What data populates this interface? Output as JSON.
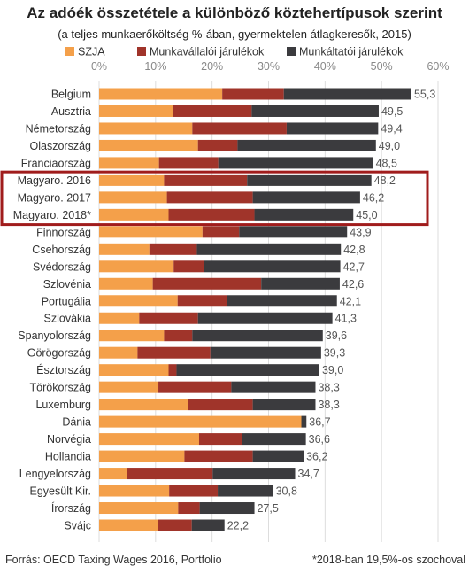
{
  "chart_data": {
    "type": "bar",
    "orientation": "horizontal",
    "stacked": true,
    "title": "Az adóék összetétele a különböző köztehertípusok szerint",
    "subtitle": "(a teljes munkaerőköltség %-ában, gyermektelen átlagkeresők, 2015)",
    "xlim": [
      0,
      60
    ],
    "xticks": [
      "0%",
      "10%",
      "20%",
      "30%",
      "40%",
      "50%",
      "60%"
    ],
    "xtick_values": [
      0,
      10,
      20,
      30,
      40,
      50,
      60
    ],
    "grid": true,
    "legend_position": "top",
    "categories": [
      "Belgium",
      "Ausztria",
      "Németország",
      "Olaszország",
      "Franciaország",
      "Magyaro. 2016",
      "Magyaro. 2017",
      "Magyaro. 2018*",
      "Finnország",
      "Csehország",
      "Svédország",
      "Szlovénia",
      "Portugália",
      "Szlovákia",
      "Spanyolország",
      "Görögország",
      "Észtország",
      "Törökország",
      "Luxemburg",
      "Dánia",
      "Norvégia",
      "Hollandia",
      "Lengyelország",
      "Egyesült Kir.",
      "Írország",
      "Svájc"
    ],
    "series": [
      {
        "name": "SZJA",
        "color": "#f4a04a",
        "values": [
          21.8,
          13.0,
          16.5,
          17.5,
          10.6,
          11.5,
          12.0,
          12.3,
          18.3,
          8.9,
          13.2,
          9.5,
          13.9,
          7.1,
          11.5,
          6.8,
          12.3,
          10.5,
          15.8,
          35.8,
          17.7,
          15.1,
          4.9,
          12.4,
          14.0,
          10.4
        ]
      },
      {
        "name": "Munkavállalói járulékok",
        "color": "#a0342a",
        "values": [
          10.9,
          14.0,
          16.7,
          7.0,
          10.5,
          14.7,
          15.2,
          15.2,
          6.5,
          8.4,
          5.4,
          19.2,
          8.7,
          10.4,
          5.0,
          12.9,
          1.4,
          12.9,
          11.4,
          0.0,
          7.6,
          12.1,
          15.2,
          8.6,
          3.8,
          6.0
        ]
      },
      {
        "name": "Munkáltatói járulékok",
        "color": "#3b3b3e",
        "values": [
          22.6,
          22.5,
          16.2,
          24.5,
          27.4,
          22.0,
          19.0,
          17.5,
          19.1,
          25.5,
          24.1,
          13.9,
          19.5,
          23.8,
          23.1,
          19.6,
          25.3,
          14.9,
          11.1,
          0.9,
          11.3,
          9.0,
          14.6,
          9.8,
          9.7,
          5.8
        ]
      }
    ],
    "totals": [
      55.3,
      49.5,
      49.4,
      49.0,
      48.5,
      48.2,
      46.2,
      45.0,
      43.9,
      42.8,
      42.7,
      42.6,
      42.1,
      41.3,
      39.6,
      39.3,
      39.0,
      38.3,
      38.3,
      36.7,
      36.6,
      36.2,
      34.7,
      30.8,
      27.5,
      22.2
    ],
    "total_labels": [
      "55,3",
      "49,5",
      "49,4",
      "49,0",
      "48,5",
      "48,2",
      "46,2",
      "45,0",
      "43,9",
      "42,8",
      "42,7",
      "42,6",
      "42,1",
      "41,3",
      "39,6",
      "39,3",
      "39,0",
      "38,3",
      "38,3",
      "36,7",
      "36,6",
      "36,2",
      "34,7",
      "30,8",
      "27,5",
      "22,2"
    ],
    "highlight_categories": [
      "Magyaro. 2016",
      "Magyaro. 2017",
      "Magyaro. 2018*"
    ],
    "highlight_color": "#a01c1c",
    "source": "Forrás: OECD Taxing Wages 2016, Portfolio",
    "footnote": "*2018-ban 19,5%-os szochoval"
  }
}
